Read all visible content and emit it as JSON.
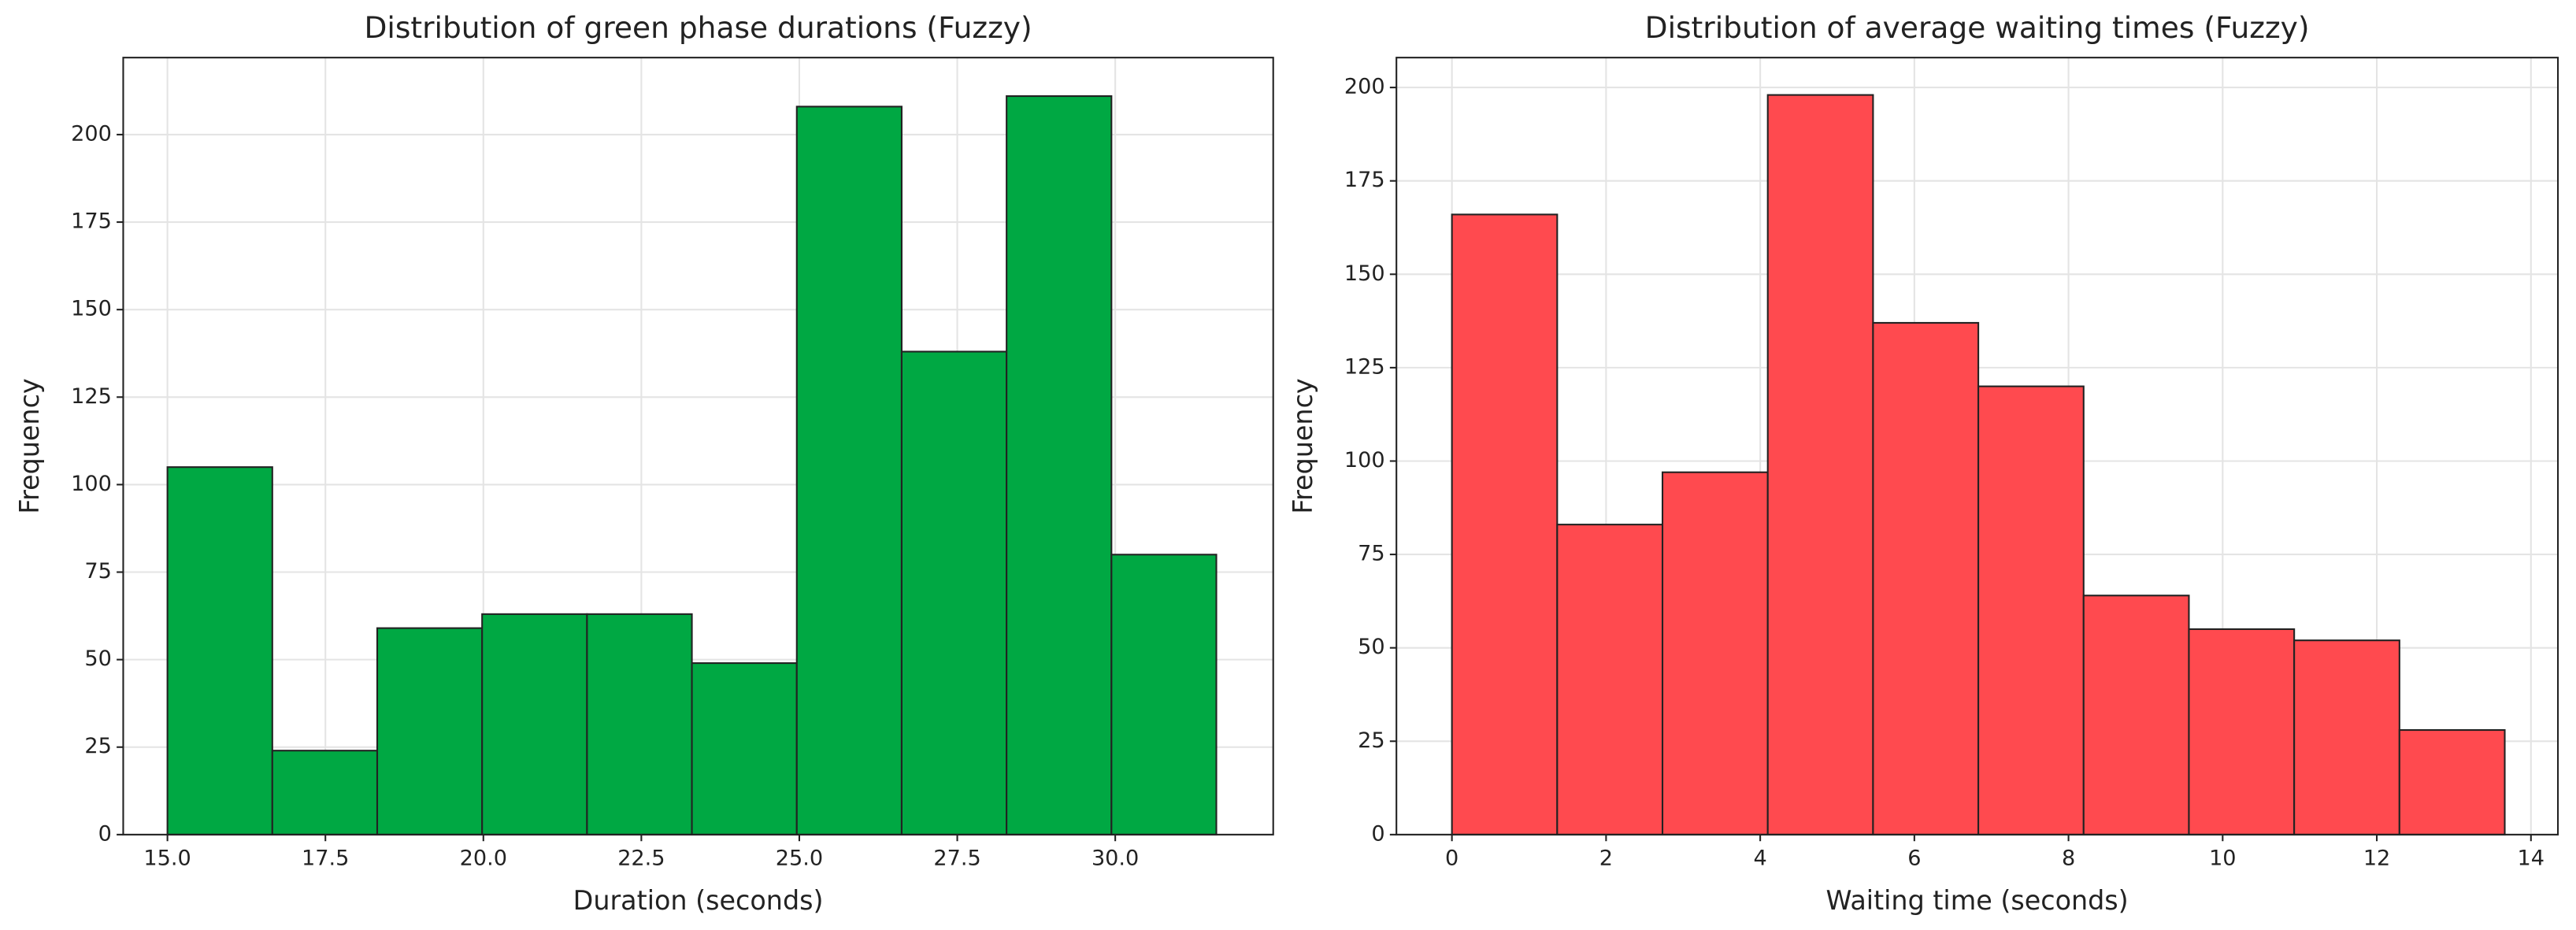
{
  "chart_data": [
    {
      "type": "histogram",
      "title": "Distribution of green phase durations (Fuzzy)",
      "xlabel": "Duration (seconds)",
      "ylabel": "Frequency",
      "bins": [
        15.0,
        16.66,
        18.32,
        19.98,
        21.64,
        23.3,
        24.96,
        26.62,
        28.28,
        29.94,
        31.6
      ],
      "values": [
        105,
        24,
        59,
        63,
        63,
        49,
        208,
        138,
        211,
        80
      ],
      "color": "#00a843",
      "edgecolor": "#222222",
      "xlim": [
        14.3,
        32.5
      ],
      "ylim": [
        0,
        222
      ],
      "xticks": [
        {
          "value": 15,
          "label": "15.0"
        },
        {
          "value": 17.5,
          "label": "17.5"
        },
        {
          "value": 20,
          "label": "20.0"
        },
        {
          "value": 22.5,
          "label": "22.5"
        },
        {
          "value": 25,
          "label": "25.0"
        },
        {
          "value": 27.5,
          "label": "27.5"
        },
        {
          "value": 30,
          "label": "30.0"
        }
      ],
      "yticks": [
        0,
        25,
        50,
        75,
        100,
        125,
        150,
        175,
        200
      ],
      "grid": true
    },
    {
      "type": "histogram",
      "title": "Distribution of average waiting times (Fuzzy)",
      "xlabel": "Waiting time (seconds)",
      "ylabel": "Frequency",
      "bins": [
        0,
        1.366,
        2.732,
        4.098,
        5.464,
        6.83,
        8.196,
        9.562,
        10.928,
        12.294,
        13.66
      ],
      "values": [
        166,
        83,
        97,
        198,
        137,
        120,
        64,
        55,
        52,
        28
      ],
      "color": "#ff4a4f",
      "edgecolor": "#222222",
      "xlim": [
        -0.72,
        14.35
      ],
      "ylim": [
        0,
        208
      ],
      "xticks": [
        0,
        2,
        4,
        6,
        8,
        10,
        12,
        14
      ],
      "yticks": [
        0,
        25,
        50,
        75,
        100,
        125,
        150,
        175,
        200
      ],
      "grid": true
    }
  ]
}
